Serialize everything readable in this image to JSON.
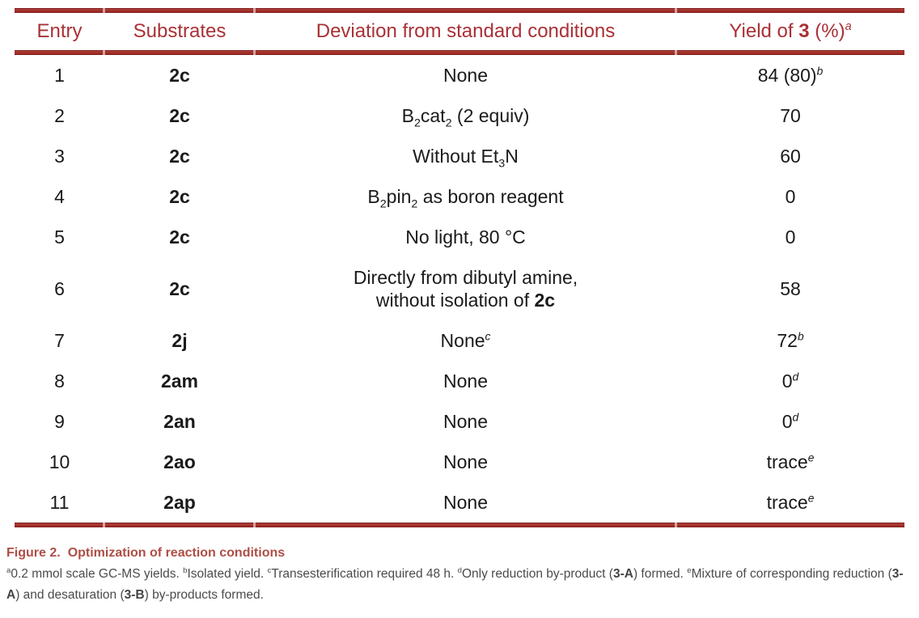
{
  "colors": {
    "table_rule": "#9c2b26",
    "header_text": "#a93136",
    "caption_text": "#ae4e46",
    "footnote_text": "#4b4b4d",
    "body_text": "#1a1a1a"
  },
  "table": {
    "header": [
      [
        [
          "Entry",
          ""
        ]
      ],
      [
        [
          "Substrates",
          ""
        ]
      ],
      [
        [
          "Deviation from standard conditions",
          ""
        ]
      ],
      [
        [
          "Yield of ",
          ""
        ],
        [
          "3",
          "b"
        ],
        [
          " (%)",
          ""
        ],
        [
          "a",
          "sup"
        ]
      ]
    ],
    "rows": [
      {
        "entry": "1",
        "substrate": [
          [
            "2c",
            "b"
          ]
        ],
        "deviation": [
          [
            "None",
            ""
          ]
        ],
        "yield": [
          [
            "84 (80)",
            ""
          ],
          [
            "b",
            "sup"
          ]
        ]
      },
      {
        "entry": "2",
        "substrate": [
          [
            "2c",
            "b"
          ]
        ],
        "deviation": [
          [
            "B",
            ""
          ],
          [
            "2",
            "sub"
          ],
          [
            "cat",
            ""
          ],
          [
            "2",
            "sub"
          ],
          [
            " (2 equiv)",
            ""
          ]
        ],
        "yield": [
          [
            "70",
            ""
          ]
        ]
      },
      {
        "entry": "3",
        "substrate": [
          [
            "2c",
            "b"
          ]
        ],
        "deviation": [
          [
            "Without Et",
            ""
          ],
          [
            "3",
            "sub"
          ],
          [
            "N",
            ""
          ]
        ],
        "yield": [
          [
            "60",
            ""
          ]
        ]
      },
      {
        "entry": "4",
        "substrate": [
          [
            "2c",
            "b"
          ]
        ],
        "deviation": [
          [
            "B",
            ""
          ],
          [
            "2",
            "sub"
          ],
          [
            "pin",
            ""
          ],
          [
            "2",
            "sub"
          ],
          [
            " as boron reagent",
            ""
          ]
        ],
        "yield": [
          [
            "0",
            ""
          ]
        ]
      },
      {
        "entry": "5",
        "substrate": [
          [
            "2c",
            "b"
          ]
        ],
        "deviation": [
          [
            "No light, 80 °C",
            ""
          ]
        ],
        "yield": [
          [
            "0",
            ""
          ]
        ]
      },
      {
        "entry": "6",
        "substrate": [
          [
            "2c",
            "b"
          ]
        ],
        "deviation": [
          [
            "Directly from dibutyl amine,",
            ""
          ],
          [
            "",
            "br"
          ],
          [
            "without isolation of ",
            ""
          ],
          [
            "2c",
            "b"
          ]
        ],
        "yield": [
          [
            "58",
            ""
          ]
        ]
      },
      {
        "entry": "7",
        "substrate": [
          [
            "2j",
            "b"
          ]
        ],
        "deviation": [
          [
            "None",
            ""
          ],
          [
            "c",
            "sup"
          ]
        ],
        "yield": [
          [
            "72",
            ""
          ],
          [
            "b",
            "sup"
          ]
        ]
      },
      {
        "entry": "8",
        "substrate": [
          [
            "2am",
            "b"
          ]
        ],
        "deviation": [
          [
            "None",
            ""
          ]
        ],
        "yield": [
          [
            "0",
            ""
          ],
          [
            "d",
            "sup"
          ]
        ]
      },
      {
        "entry": "9",
        "substrate": [
          [
            "2an",
            "b"
          ]
        ],
        "deviation": [
          [
            "None",
            ""
          ]
        ],
        "yield": [
          [
            "0",
            ""
          ],
          [
            "d",
            "sup"
          ]
        ]
      },
      {
        "entry": "10",
        "substrate": [
          [
            "2ao",
            "b"
          ]
        ],
        "deviation": [
          [
            "None",
            ""
          ]
        ],
        "yield": [
          [
            "trace",
            ""
          ],
          [
            "e",
            "sup"
          ]
        ]
      },
      {
        "entry": "11",
        "substrate": [
          [
            "2ap",
            "b"
          ]
        ],
        "deviation": [
          [
            "None",
            ""
          ]
        ],
        "yield": [
          [
            "trace",
            ""
          ],
          [
            "e",
            "sup"
          ]
        ]
      }
    ]
  },
  "caption": {
    "label": "Figure 2.",
    "title": "Optimization of reaction conditions"
  },
  "footnotes": [
    [
      "a",
      "sup"
    ],
    [
      "0.2 mmol scale GC-MS yields. ",
      ""
    ],
    [
      "b",
      "sup"
    ],
    [
      "Isolated yield. ",
      ""
    ],
    [
      "c",
      "sup"
    ],
    [
      "Transesterification required 48 h. ",
      ""
    ],
    [
      "d",
      "sup"
    ],
    [
      "Only reduction by-product (",
      ""
    ],
    [
      "3-A",
      "b"
    ],
    [
      ") formed. ",
      ""
    ],
    [
      "e",
      "sup"
    ],
    [
      "Mixture of corresponding reduction (",
      ""
    ],
    [
      "3-A",
      "b"
    ],
    [
      ") and desaturation (",
      ""
    ],
    [
      "3-B",
      "b"
    ],
    [
      ") by-products formed.",
      ""
    ]
  ]
}
